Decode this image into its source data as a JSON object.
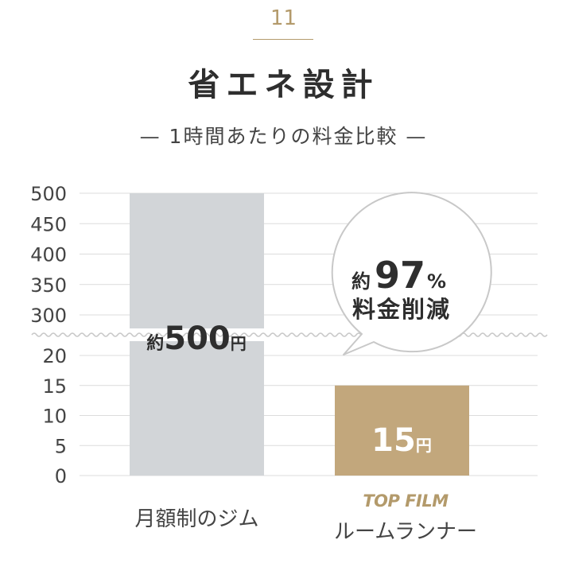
{
  "header": {
    "number": "11",
    "title": "省エネ設計",
    "subtitle": "— 1時間あたりの料金比較 —"
  },
  "callout": {
    "prefix": "約",
    "value": "97",
    "unit": "%",
    "text": "料金削減"
  },
  "brand": "TOP FILM",
  "chart_data": {
    "type": "bar",
    "categories": [
      "月額制のジム",
      "ルームランナー"
    ],
    "values": [
      500,
      15
    ],
    "value_labels": [
      {
        "prefix": "約",
        "number": "500",
        "unit": "円"
      },
      {
        "prefix": "",
        "number": "15",
        "unit": "円"
      }
    ],
    "bar_colors": [
      "#d2d5d8",
      "#c2a77c"
    ],
    "value_label_colors": [
      "#2e2e2e",
      "#ffffff"
    ],
    "yaxis": {
      "broken": true,
      "lower_ticks": [
        0,
        5,
        10,
        15,
        20
      ],
      "upper_ticks": [
        300,
        350,
        400,
        450,
        500
      ],
      "lower_range": [
        0,
        25
      ],
      "upper_range": [
        275,
        500
      ]
    },
    "grid": true,
    "xlabel": "",
    "ylabel": ""
  },
  "colors": {
    "accent": "#b39a6b",
    "grid": "#dcdcdc",
    "text": "#333333"
  }
}
